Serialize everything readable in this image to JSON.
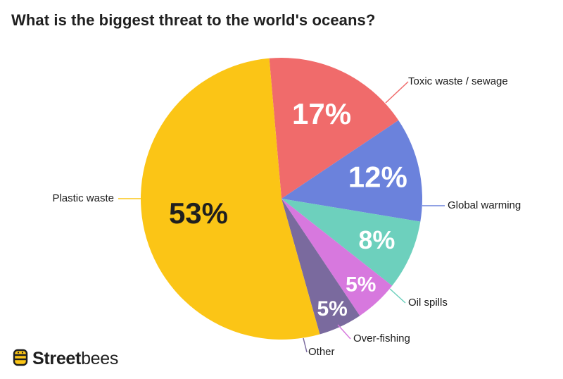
{
  "chart_data": {
    "type": "pie",
    "title": "What is the biggest threat to the world's oceans?",
    "slices": [
      {
        "label": "Toxic waste / sewage",
        "value": 17,
        "display": "17%",
        "color": "#f06b6b",
        "text_color": "#ffffff"
      },
      {
        "label": "Global warming",
        "value": 12,
        "display": "12%",
        "color": "#6b82dc",
        "text_color": "#ffffff"
      },
      {
        "label": "Oil spills",
        "value": 8,
        "display": "8%",
        "color": "#6dd0bd",
        "text_color": "#ffffff"
      },
      {
        "label": "Over-fishing",
        "value": 5,
        "display": "5%",
        "color": "#d778de",
        "text_color": "#ffffff"
      },
      {
        "label": "Other",
        "value": 5,
        "display": "5%",
        "color": "#7a6a9e",
        "text_color": "#ffffff"
      },
      {
        "label": "Plastic waste",
        "value": 53,
        "display": "53%",
        "color": "#fbc516",
        "text_color": "#1f1f1f"
      }
    ]
  },
  "brand": {
    "logo_bold": "Street",
    "logo_light": "bees",
    "icon": "bee-icon"
  }
}
